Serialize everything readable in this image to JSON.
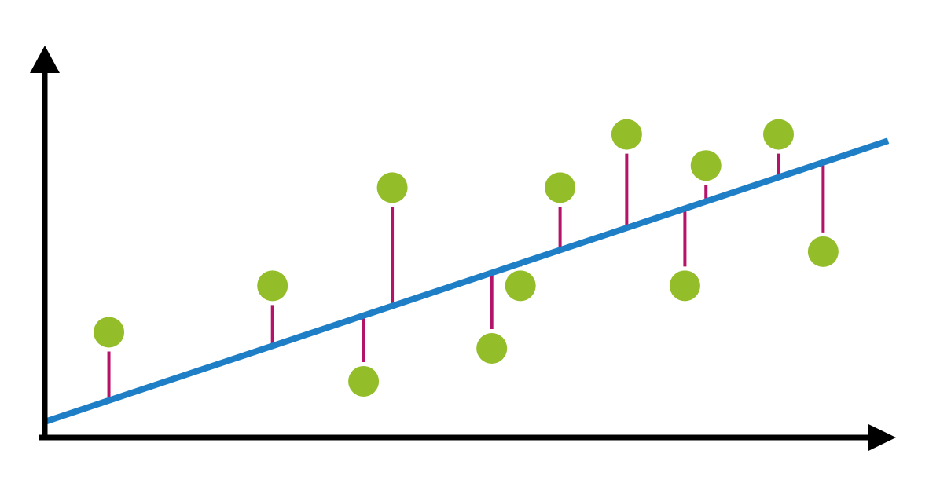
{
  "chart_data": {
    "type": "scatter",
    "title": "",
    "xlabel": "",
    "ylabel": "",
    "grid": false,
    "legend": "none",
    "xlim": [
      0,
      100
    ],
    "ylim": [
      0,
      100
    ],
    "trendline": {
      "x": [
        0,
        100
      ],
      "y": [
        4.2,
        79.2
      ]
    },
    "points": [
      {
        "x": 7.6,
        "y": 28.1
      },
      {
        "x": 27.0,
        "y": 40.5
      },
      {
        "x": 37.8,
        "y": 15.0
      },
      {
        "x": 41.2,
        "y": 66.7
      },
      {
        "x": 53.0,
        "y": 23.8
      },
      {
        "x": 56.4,
        "y": 40.5
      },
      {
        "x": 61.1,
        "y": 66.7
      },
      {
        "x": 69.0,
        "y": 80.9
      },
      {
        "x": 75.9,
        "y": 40.5
      },
      {
        "x": 78.4,
        "y": 72.6
      },
      {
        "x": 87.0,
        "y": 80.9
      },
      {
        "x": 92.3,
        "y": 49.6
      }
    ],
    "residual_lines": true,
    "colors": {
      "points": "#94bd2a",
      "trendline": "#1e7fc6",
      "residuals": "#b5136a",
      "axes": "#000000"
    }
  }
}
